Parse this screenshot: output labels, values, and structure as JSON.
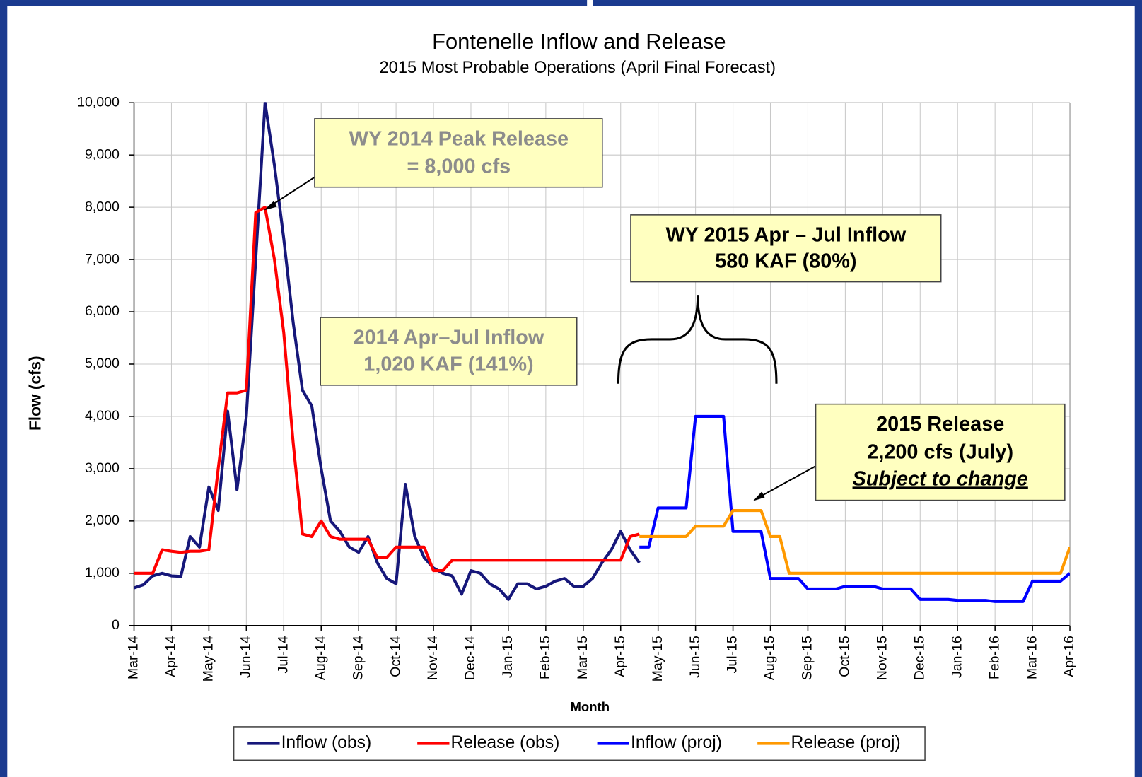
{
  "chart_data": {
    "type": "line",
    "title": "Fontenelle Inflow and Release",
    "subtitle": "2015 Most Probable Operations (April Final Forecast)",
    "ylabel": "Flow (cfs)",
    "xlabel": "Month",
    "ylim": [
      0,
      10000
    ],
    "yticks": [
      0,
      {
        "value": 1000,
        "label": "1,000"
      },
      {
        "value": 2000,
        "label": "2,000"
      },
      {
        "value": 3000,
        "label": "3,000"
      },
      {
        "value": 4000,
        "label": "4,000"
      },
      {
        "value": 5000,
        "label": "5,000"
      },
      {
        "value": 6000,
        "label": "6,000"
      },
      {
        "value": 7000,
        "label": "7,000"
      },
      {
        "value": 8000,
        "label": "8,000"
      },
      {
        "value": 9000,
        "label": "9,000"
      },
      {
        "value": 10000,
        "label": "10,000"
      }
    ],
    "xticks": [
      "Mar-14",
      "Apr-14",
      "May-14",
      "Jun-14",
      "Jul-14",
      "Aug-14",
      "Sep-14",
      "Oct-14",
      "Nov-14",
      "Dec-14",
      "Jan-15",
      "Feb-15",
      "Mar-15",
      "Apr-15",
      "May-15",
      "Jun-15",
      "Jul-15",
      "Aug-15",
      "Sep-15",
      "Oct-15",
      "Nov-15",
      "Dec-15",
      "Jan-16",
      "Feb-16",
      "Mar-16",
      "Apr-16"
    ],
    "grid": true,
    "series": [
      {
        "name": "Inflow (obs)",
        "color": "#16177a",
        "values": [
          720,
          780,
          950,
          1000,
          950,
          940,
          1700,
          1500,
          2650,
          2200,
          4100,
          2600,
          4000,
          7000,
          10000,
          8800,
          7400,
          5800,
          4500,
          4200,
          3000,
          2000,
          1800,
          1500,
          1400,
          1700,
          1200,
          900,
          800,
          2700,
          1700,
          1300,
          1100,
          1000,
          950,
          600,
          1050,
          1000,
          800,
          700,
          500,
          800,
          800,
          700,
          750,
          850,
          900,
          750,
          750,
          900,
          1200,
          1450,
          1800,
          1450,
          1200,
          null,
          null,
          null,
          null,
          null,
          null,
          null,
          null,
          null,
          null,
          null,
          null,
          null,
          null,
          null,
          null,
          null,
          null,
          null,
          null,
          null,
          null,
          null,
          null,
          null,
          null,
          null,
          null,
          null,
          null,
          null,
          null,
          null,
          null,
          null,
          null,
          null,
          null,
          null,
          null,
          null,
          null,
          null,
          null,
          null,
          null
        ]
      },
      {
        "name": "Release (obs)",
        "color": "#ff0000",
        "values": [
          1000,
          1000,
          1000,
          1450,
          1420,
          1400,
          1420,
          1420,
          1450,
          3000,
          4450,
          4450,
          4500,
          7900,
          8000,
          7000,
          5600,
          3500,
          1750,
          1700,
          2000,
          1700,
          1650,
          1650,
          1650,
          1650,
          1300,
          1300,
          1500,
          1500,
          1500,
          1500,
          1050,
          1050,
          1250,
          1250,
          1250,
          1250,
          1250,
          1250,
          1250,
          1250,
          1250,
          1250,
          1250,
          1250,
          1250,
          1250,
          1250,
          1250,
          1250,
          1250,
          1250,
          1700,
          1750,
          null,
          null,
          null,
          null,
          null,
          null,
          null,
          null,
          null,
          null,
          null,
          null,
          null,
          null,
          null,
          null,
          null,
          null,
          null,
          null,
          null,
          null,
          null,
          null,
          null,
          null,
          null,
          null,
          null,
          null,
          null,
          null,
          null,
          null,
          null,
          null,
          null,
          null,
          null,
          null,
          null,
          null,
          null,
          null,
          null,
          null
        ]
      },
      {
        "name": "Inflow (proj)",
        "color": "#0000ff",
        "values": [
          null,
          null,
          null,
          null,
          null,
          null,
          null,
          null,
          null,
          null,
          null,
          null,
          null,
          null,
          null,
          null,
          null,
          null,
          null,
          null,
          null,
          null,
          null,
          null,
          null,
          null,
          null,
          null,
          null,
          null,
          null,
          null,
          null,
          null,
          null,
          null,
          null,
          null,
          null,
          null,
          null,
          null,
          null,
          null,
          null,
          null,
          null,
          null,
          null,
          null,
          null,
          null,
          null,
          null,
          1500,
          1500,
          2250,
          2250,
          2250,
          2250,
          4000,
          4000,
          4000,
          4000,
          1800,
          1800,
          1800,
          1800,
          900,
          900,
          900,
          900,
          700,
          700,
          700,
          700,
          750,
          750,
          750,
          750,
          700,
          700,
          700,
          700,
          500,
          500,
          500,
          500,
          480,
          480,
          480,
          480,
          460,
          460,
          460,
          460,
          850,
          850,
          850,
          850,
          1000
        ]
      },
      {
        "name": "Release (proj)",
        "color": "#ff9900",
        "values": [
          null,
          null,
          null,
          null,
          null,
          null,
          null,
          null,
          null,
          null,
          null,
          null,
          null,
          null,
          null,
          null,
          null,
          null,
          null,
          null,
          null,
          null,
          null,
          null,
          null,
          null,
          null,
          null,
          null,
          null,
          null,
          null,
          null,
          null,
          null,
          null,
          null,
          null,
          null,
          null,
          null,
          null,
          null,
          null,
          null,
          null,
          null,
          null,
          null,
          null,
          null,
          null,
          null,
          null,
          1700,
          1700,
          1700,
          1700,
          1700,
          1700,
          1900,
          1900,
          1900,
          1900,
          2200,
          2200,
          2200,
          2200,
          1700,
          1700,
          1000,
          1000,
          1000,
          1000,
          1000,
          1000,
          1000,
          1000,
          1000,
          1000,
          1000,
          1000,
          1000,
          1000,
          1000,
          1000,
          1000,
          1000,
          1000,
          1000,
          1000,
          1000,
          1000,
          1000,
          1000,
          1000,
          1000,
          1000,
          1000,
          1000,
          1500
        ]
      }
    ],
    "annotations": [
      {
        "text": [
          "WY 2014 Peak Release",
          "= 8,000 cfs"
        ]
      },
      {
        "text": [
          "2014  Apr–Jul Inflow",
          "1,020 KAF (141%)"
        ]
      },
      {
        "text": [
          "WY 2015  Apr – Jul Inflow",
          "580 KAF (80%)"
        ]
      },
      {
        "text": [
          "2015 Release",
          "2,200 cfs (July)",
          "Subject to change"
        ]
      }
    ]
  }
}
